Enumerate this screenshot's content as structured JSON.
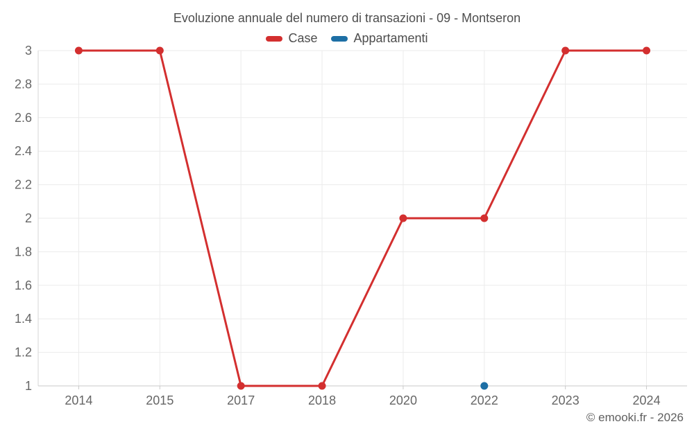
{
  "header": {
    "title": "Evoluzione annuale del numero di transazioni - 09 - Montseron"
  },
  "legend": {
    "items": [
      {
        "label": "Case",
        "color": "#d32f2f"
      },
      {
        "label": "Appartamenti",
        "color": "#1d6fa5"
      }
    ]
  },
  "footer": {
    "credit": "© emooki.fr - 2026"
  },
  "chart_data": {
    "type": "line",
    "title": "Evoluzione annuale del numero di transazioni - 09 - Montseron",
    "categories": [
      "2014",
      "2015",
      "2017",
      "2018",
      "2020",
      "2022",
      "2023",
      "2024"
    ],
    "series": [
      {
        "name": "Case",
        "color": "#d32f2f",
        "values": [
          3,
          3,
          1,
          1,
          2,
          2,
          3,
          3
        ]
      },
      {
        "name": "Appartamenti",
        "color": "#1d6fa5",
        "values": [
          null,
          null,
          null,
          null,
          null,
          1,
          null,
          null
        ]
      }
    ],
    "xlabel": "",
    "ylabel": "",
    "ylim": [
      1,
      3
    ],
    "ytick_step": 0.2,
    "ytick_labels": [
      "1",
      "1.2",
      "1.4",
      "1.6",
      "1.8",
      "2",
      "2.2",
      "2.4",
      "2.6",
      "2.8",
      "3"
    ],
    "grid": true,
    "legend_position": "top",
    "colors": {
      "grid_line": "#ebebeb",
      "axis_line": "#c9c9c9",
      "tick_text": "#666666",
      "title_text": "#4d4d4d"
    }
  }
}
